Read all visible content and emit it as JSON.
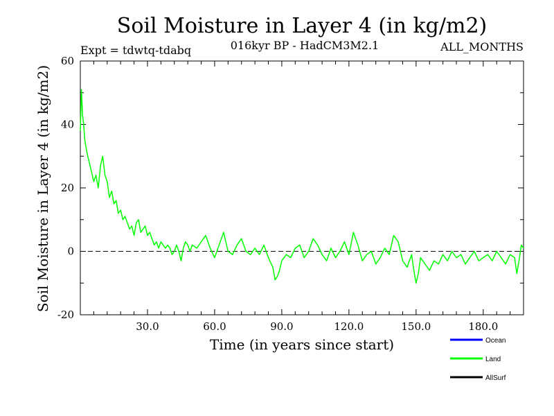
{
  "chart_data": {
    "type": "line",
    "title": "Soil Moisture in Layer 4 (in kg/m2)",
    "subtitle_left": "Expt = tdwtq-tdabq",
    "subtitle_center": "016kyr BP - HadCM3M2.1",
    "subtitle_right": "ALL_MONTHS",
    "xlabel": "Time (in years since start)",
    "ylabel": "Soil Moisture in Layer 4 (in kg/m2)",
    "xlim": [
      0,
      198
    ],
    "ylim": [
      -20,
      60
    ],
    "xticks": [
      30,
      60,
      90,
      120,
      150,
      180
    ],
    "xtick_labels": [
      "30.0",
      "60.0",
      "90.0",
      "120.0",
      "150.0",
      "180.0"
    ],
    "yticks": [
      -20,
      0,
      20,
      40,
      60
    ],
    "ytick_labels": [
      "-20",
      "0",
      "20",
      "40",
      "60"
    ],
    "reference_line": 0,
    "legend": [
      {
        "name": "Ocean",
        "color": "#0000ff"
      },
      {
        "name": "Land",
        "color": "#00ff00"
      },
      {
        "name": "AllSurf",
        "color": "#000000"
      }
    ],
    "series": [
      {
        "name": "Land",
        "color": "#00ff00",
        "x": [
          0,
          0.5,
          1,
          1.5,
          2,
          3,
          4,
          5,
          6,
          7,
          8,
          9,
          10,
          11,
          12,
          13,
          14,
          15,
          16,
          17,
          18,
          19,
          20,
          21,
          22,
          23,
          24,
          25,
          26,
          27,
          28,
          29,
          30,
          31,
          32,
          33,
          34,
          35,
          36,
          37,
          38,
          39,
          40,
          41,
          42,
          43,
          44,
          45,
          46,
          47,
          48,
          49,
          50,
          52,
          54,
          56,
          58,
          60,
          62,
          64,
          66,
          68,
          70,
          72,
          74,
          76,
          78,
          80,
          82,
          84,
          86,
          87,
          88,
          89,
          90,
          92,
          94,
          96,
          98,
          100,
          102,
          104,
          106,
          108,
          110,
          112,
          114,
          116,
          118,
          120,
          122,
          124,
          126,
          128,
          130,
          132,
          134,
          136,
          138,
          140,
          142,
          144,
          146,
          148,
          149,
          150,
          151,
          152,
          154,
          156,
          158,
          160,
          162,
          164,
          166,
          168,
          170,
          172,
          174,
          176,
          178,
          180,
          182,
          184,
          186,
          188,
          190,
          192,
          194,
          195,
          196,
          197,
          198
        ],
        "values": [
          38,
          51,
          43,
          40,
          35,
          31,
          28,
          25,
          22,
          24,
          20,
          27,
          30,
          24,
          22,
          17,
          19,
          15,
          16,
          12,
          13,
          10,
          11,
          9,
          7,
          8,
          5,
          9,
          10,
          6,
          7,
          8,
          5,
          6,
          4,
          2,
          3,
          1,
          3,
          2,
          1,
          2,
          1,
          -1,
          0,
          2,
          0,
          -3,
          1,
          3,
          2,
          0,
          2,
          1,
          3,
          5,
          1,
          -2,
          2,
          6,
          0,
          -1,
          2,
          4,
          0,
          -1,
          1,
          -1,
          2,
          -2,
          -5,
          -9,
          -8,
          -6,
          -3,
          -1,
          -2,
          1,
          2,
          -2,
          0,
          4,
          2,
          -1,
          -3,
          1,
          -2,
          0,
          3,
          -1,
          6,
          2,
          -3,
          -1,
          0,
          -4,
          -2,
          1,
          -1,
          5,
          3,
          -3,
          -5,
          -1,
          -6,
          -10,
          -7,
          -2,
          -4,
          -6,
          -3,
          -4,
          -1,
          -3,
          0,
          -2,
          -1,
          -4,
          -2,
          0,
          -3,
          -2,
          -1,
          -3,
          0,
          -2,
          -4,
          -1,
          -2,
          -7,
          -3,
          2,
          1
        ]
      }
    ]
  }
}
